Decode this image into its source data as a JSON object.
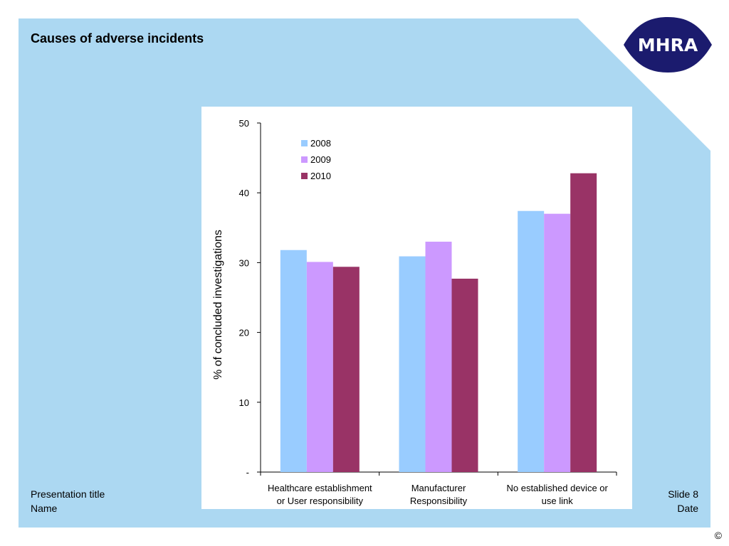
{
  "slide": {
    "title": "Causes of adverse incidents",
    "footer_left_title": "Presentation title",
    "footer_left_name": "Name",
    "footer_right_slide": "Slide 8",
    "footer_right_date": "Date",
    "copyright": "©"
  },
  "logo": {
    "text": "MHRA",
    "color": "#1b1b6e",
    "icon": "mhra-logo"
  },
  "colors": {
    "slide_background": "#acd8f2",
    "accent_2008": "#99ccff",
    "accent_2009": "#cc99ff",
    "accent_2010": "#993366"
  },
  "chart_data": {
    "type": "bar",
    "title": "",
    "xlabel": "",
    "ylabel": "% of concluded investigations",
    "ylim": [
      0,
      50
    ],
    "yticks": [
      0,
      10,
      20,
      30,
      40,
      50
    ],
    "ytick_labels": [
      "-",
      "10",
      "20",
      "30",
      "40",
      "50"
    ],
    "categories": [
      [
        "Healthcare establishment",
        "or User responsibility"
      ],
      [
        "Manufacturer",
        "Responsibility"
      ],
      [
        "No established device or",
        "use link"
      ]
    ],
    "series": [
      {
        "name": "2008",
        "color": "#99ccff",
        "values": [
          31.8,
          30.9,
          37.4
        ]
      },
      {
        "name": "2009",
        "color": "#cc99ff",
        "values": [
          30.1,
          33.0,
          37.0
        ]
      },
      {
        "name": "2010",
        "color": "#993366",
        "values": [
          29.4,
          27.7,
          42.8
        ]
      }
    ],
    "legend": "top-left",
    "grid": false
  }
}
